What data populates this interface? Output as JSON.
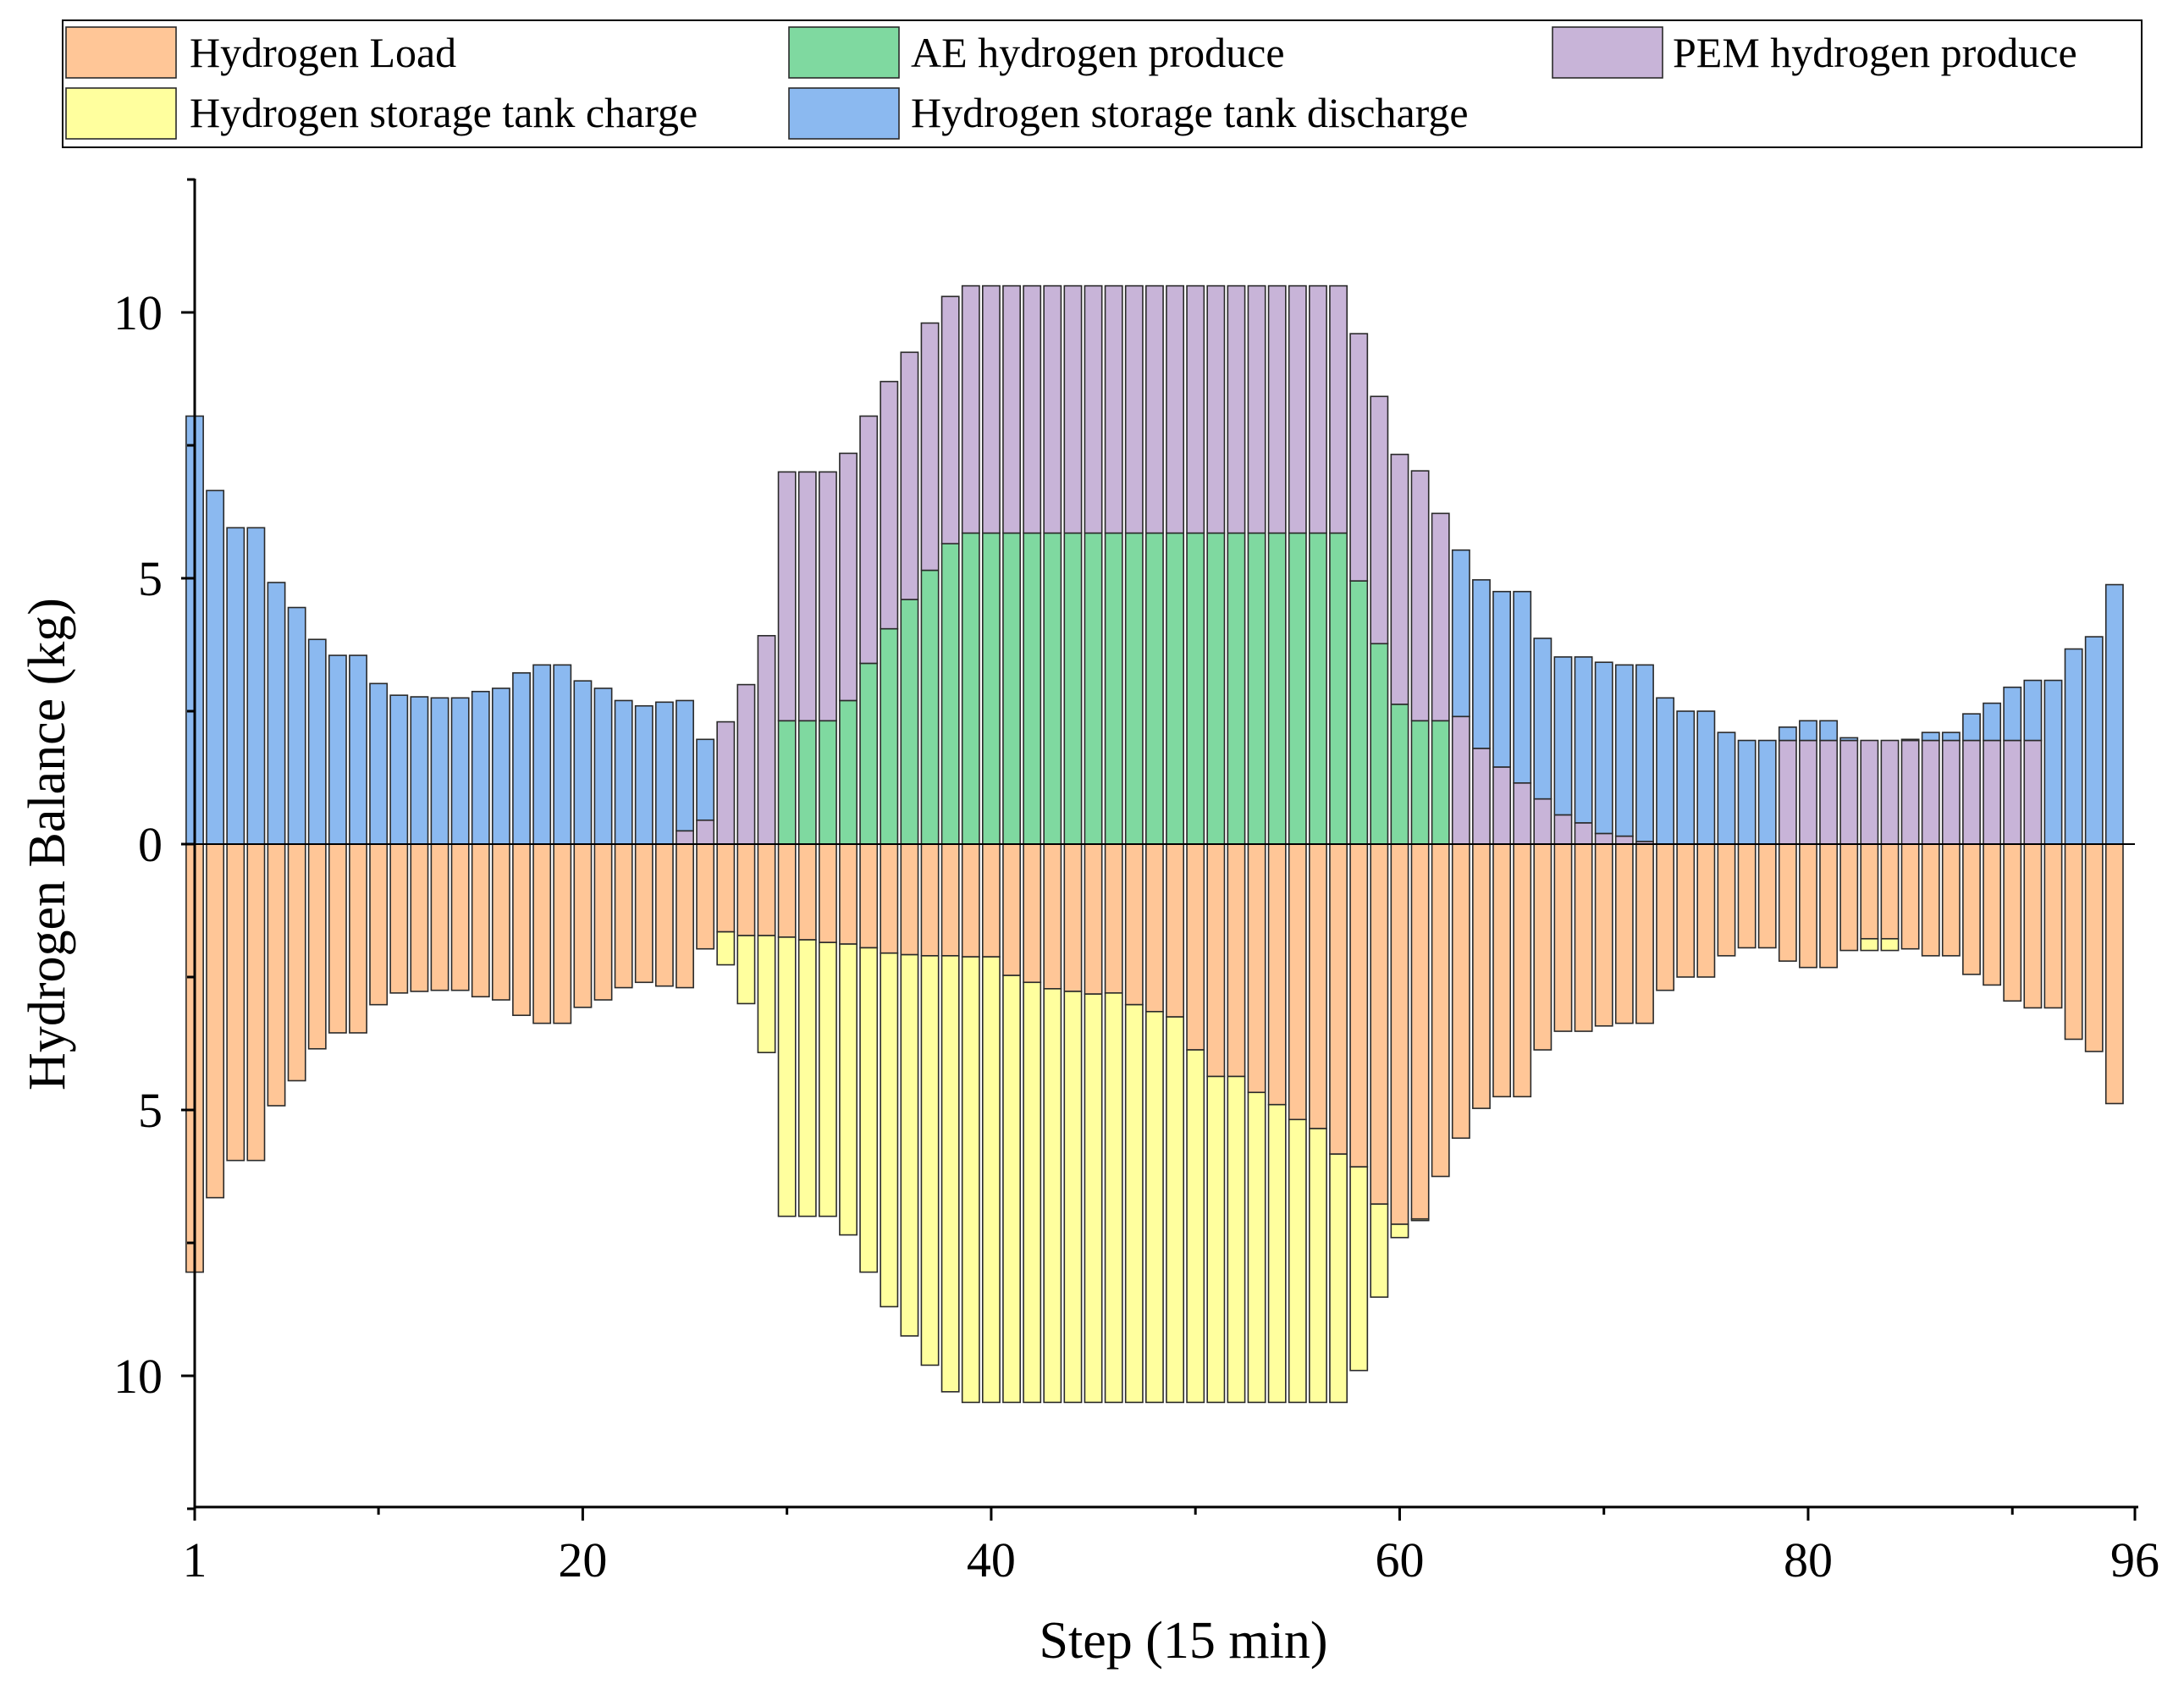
{
  "chart_data": {
    "type": "bar",
    "subtype": "stacked-diverging",
    "title": "",
    "xlabel": "Step (15 min)",
    "ylabel": "Hydrogen Balance (kg)",
    "xlim": [
      1,
      96
    ],
    "ylim": [
      -12.5,
      12.5
    ],
    "x_ticks": [
      1,
      20,
      40,
      60,
      80,
      96
    ],
    "y_ticks": [
      {
        "value": 10,
        "label": "10"
      },
      {
        "value": 5,
        "label": "5"
      },
      {
        "value": 0,
        "label": "0"
      },
      {
        "value": -5,
        "label": "5"
      },
      {
        "value": -10,
        "label": "10"
      }
    ],
    "grid": false,
    "legend_position": "top",
    "series": [
      {
        "name": "Hydrogen Load",
        "color": "#FFC697",
        "values": [
          -8.05,
          -6.65,
          -5.95,
          -5.95,
          -4.92,
          -4.45,
          -3.85,
          -3.55,
          -3.55,
          -3.02,
          -2.8,
          -2.77,
          -2.75,
          -2.75,
          -2.87,
          -2.93,
          -3.22,
          -3.37,
          -3.37,
          -3.07,
          -2.93,
          -2.7,
          -2.6,
          -2.67,
          -2.7,
          -1.97,
          -1.65,
          -1.72,
          -1.72,
          -1.75,
          -1.8,
          -1.85,
          -1.88,
          -1.95,
          -2.05,
          -2.08,
          -2.1,
          -2.1,
          -2.12,
          -2.12,
          -2.47,
          -2.6,
          -2.72,
          -2.77,
          -2.82,
          -2.8,
          -3.02,
          -3.15,
          -3.25,
          -3.87,
          -4.37,
          -4.37,
          -4.67,
          -4.9,
          -5.18,
          -5.35,
          -5.83,
          -6.07,
          -6.77,
          -7.15,
          -7.05,
          -6.25,
          -5.53,
          -4.97,
          -4.75,
          -4.75,
          -3.87,
          -3.52,
          -3.52,
          -3.42,
          -3.37,
          -3.37,
          -2.75,
          -2.5,
          -2.5,
          -2.1,
          -1.95,
          -1.95,
          -2.2,
          -2.32,
          -2.32,
          -2.0,
          -1.78,
          -1.78,
          -1.97,
          -2.1,
          -2.1,
          -2.45,
          -2.65,
          -2.95,
          -3.08,
          -3.08,
          -3.67,
          -3.9,
          -4.88
        ]
      },
      {
        "name": "AE hydrogen produce",
        "color": "#7FD9A0",
        "values": [
          0,
          0,
          0,
          0,
          0,
          0,
          0,
          0,
          0,
          0,
          0,
          0,
          0,
          0,
          0,
          0,
          0,
          0,
          0,
          0,
          0,
          0,
          0,
          0,
          0,
          0,
          0,
          0,
          0,
          2.32,
          2.32,
          2.32,
          2.7,
          3.4,
          4.05,
          4.6,
          5.15,
          5.65,
          5.85,
          5.85,
          5.85,
          5.85,
          5.85,
          5.85,
          5.85,
          5.85,
          5.85,
          5.85,
          5.85,
          5.85,
          5.85,
          5.85,
          5.85,
          5.85,
          5.85,
          5.85,
          5.85,
          4.95,
          3.77,
          2.63,
          2.32,
          2.32,
          0,
          0,
          0,
          0,
          0,
          0,
          0,
          0,
          0,
          0,
          0,
          0,
          0,
          0,
          0,
          0,
          0,
          0,
          0,
          0,
          0,
          0,
          0,
          0,
          0,
          0,
          0,
          0,
          0,
          0,
          0,
          0,
          0,
          0
        ]
      },
      {
        "name": "PEM hydrogen produce",
        "color": "#C8B4D8",
        "values": [
          0,
          0,
          0,
          0,
          0,
          0,
          0,
          0,
          0,
          0,
          0,
          0,
          0,
          0,
          0,
          0,
          0,
          0,
          0,
          0,
          0,
          0,
          0,
          0,
          0.25,
          0.45,
          2.3,
          3.0,
          3.92,
          4.68,
          4.68,
          4.68,
          4.65,
          4.65,
          4.65,
          4.65,
          4.65,
          4.65,
          4.65,
          4.65,
          4.65,
          4.65,
          4.65,
          4.65,
          4.65,
          4.65,
          4.65,
          4.65,
          4.65,
          4.65,
          4.65,
          4.65,
          4.65,
          4.65,
          4.65,
          4.65,
          4.65,
          4.65,
          4.65,
          4.7,
          4.7,
          3.9,
          2.4,
          1.8,
          1.45,
          1.15,
          0.85,
          0.55,
          0.4,
          0.2,
          0.15,
          0.05,
          0,
          0,
          0,
          0,
          0,
          0,
          1.95,
          1.95,
          1.95,
          1.95,
          1.95,
          1.95,
          1.95,
          1.95,
          1.95,
          1.95,
          1.95,
          1.95,
          1.95,
          0,
          0,
          0,
          0
        ]
      },
      {
        "name": "Hydrogen storage tank charge",
        "color": "#FFFF9E",
        "values": [
          0,
          0,
          0,
          0,
          0,
          0,
          0,
          0,
          0,
          0,
          0,
          0,
          0,
          0,
          0,
          0,
          0,
          0,
          0,
          0,
          0,
          0,
          0,
          0,
          0,
          0,
          -0.62,
          -1.28,
          -2.2,
          -5.25,
          -5.2,
          -5.15,
          -5.47,
          -6.1,
          -6.65,
          -7.17,
          -7.7,
          -8.2,
          -8.38,
          -8.38,
          -8.03,
          -7.9,
          -7.78,
          -7.73,
          -7.68,
          -7.7,
          -7.48,
          -7.35,
          -7.25,
          -6.63,
          -6.13,
          -6.13,
          -5.83,
          -5.6,
          -5.32,
          -5.15,
          -4.67,
          -3.83,
          -1.75,
          -0.25,
          -0.03,
          0,
          0,
          0,
          0,
          0,
          0,
          0,
          0,
          0,
          0,
          0,
          0,
          0,
          0,
          0,
          0,
          0,
          0,
          0,
          0,
          0,
          -0.22,
          -0.22,
          0,
          0,
          0,
          0,
          0,
          0,
          0,
          0,
          0,
          0,
          0
        ]
      },
      {
        "name": "Hydrogen storage tank discharge",
        "color": "#8BB9F0",
        "values": [
          8.05,
          6.65,
          5.95,
          5.95,
          4.92,
          4.45,
          3.85,
          3.55,
          3.55,
          3.02,
          2.8,
          2.77,
          2.75,
          2.75,
          2.87,
          2.93,
          3.22,
          3.37,
          3.37,
          3.07,
          2.93,
          2.7,
          2.6,
          2.67,
          2.45,
          1.52,
          0,
          0,
          0,
          0,
          0,
          0,
          0,
          0,
          0,
          0,
          0,
          0,
          0,
          0,
          0,
          0,
          0,
          0,
          0,
          0,
          0,
          0,
          0,
          0,
          0,
          0,
          0,
          0,
          0,
          0,
          0,
          0,
          0,
          0,
          0,
          0,
          3.13,
          3.17,
          3.3,
          3.6,
          3.02,
          2.97,
          3.12,
          3.22,
          3.22,
          3.32,
          2.75,
          2.5,
          2.5,
          2.1,
          1.95,
          1.95,
          0.25,
          0.37,
          0.37,
          0.05,
          0,
          0,
          0.02,
          0.15,
          0.15,
          0.5,
          0.7,
          1.0,
          1.13,
          3.08,
          3.67,
          3.9,
          4.88
        ]
      }
    ]
  }
}
